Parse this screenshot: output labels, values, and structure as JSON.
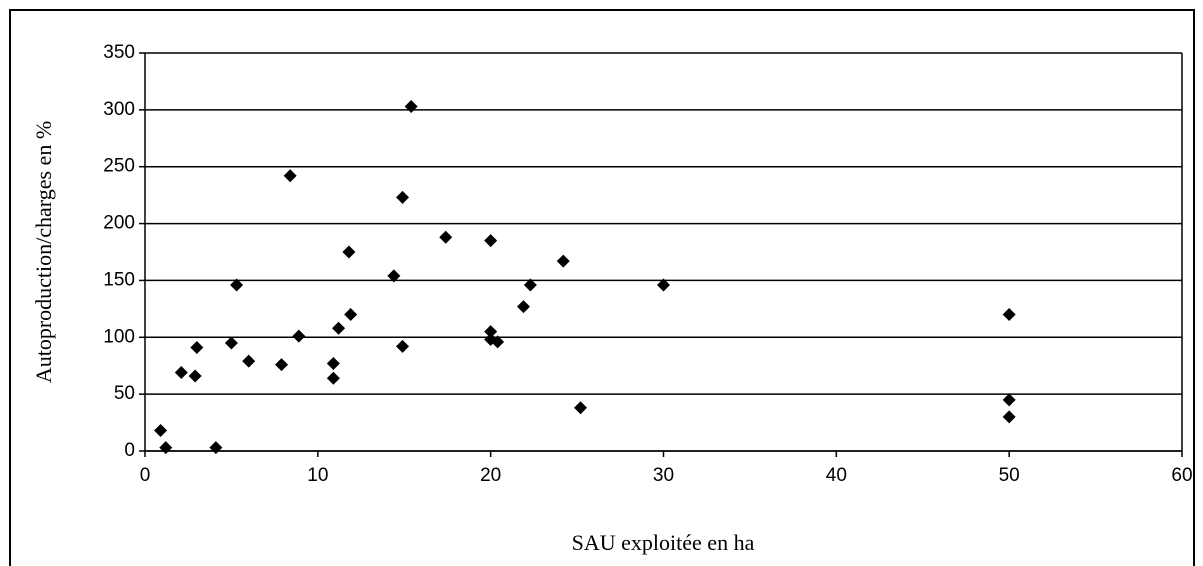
{
  "chart_data": {
    "type": "scatter",
    "x_label": "SAU exploitée en ha",
    "y_label": "Autoproduction/charges en %",
    "x": [
      0.9,
      1.2,
      2.1,
      2.9,
      3.0,
      4.1,
      5.0,
      5.3,
      6.0,
      7.9,
      8.4,
      8.9,
      10.9,
      10.9,
      11.2,
      11.8,
      11.9,
      14.4,
      14.9,
      14.9,
      15.4,
      17.4,
      20.0,
      20.0,
      20.0,
      20.4,
      21.9,
      22.3,
      24.2,
      25.2,
      30.0,
      50,
      50,
      50
    ],
    "values": [
      18,
      3,
      69,
      66,
      91,
      3,
      95,
      146,
      79,
      76,
      242,
      101,
      77,
      64,
      108,
      175,
      120,
      154,
      223,
      92,
      303,
      188,
      185,
      105,
      98,
      96,
      127,
      146,
      167,
      38,
      146,
      120,
      45,
      30
    ],
    "color": "#000000",
    "xlim": [
      0,
      60
    ],
    "xticks": [
      0,
      10,
      20,
      30,
      40,
      50,
      60
    ],
    "ylim": [
      0,
      350
    ],
    "yticks": [
      0,
      50,
      100,
      150,
      200,
      250,
      300,
      350
    ],
    "grid": true
  }
}
